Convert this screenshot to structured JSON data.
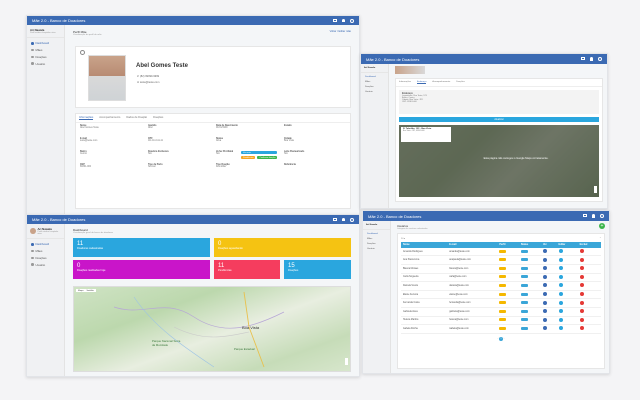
{
  "app": {
    "title": "Mãe 2.0 - Banco de Doadores",
    "user_name": "Ari Nawala",
    "user_sub": "Perfil médico hospitalar ativa",
    "nav": [
      "Dashboard",
      "Mães",
      "Doações",
      "Usuário"
    ]
  },
  "profile": {
    "header": "Perfil Mãe",
    "header_sub": "Visualização do perfil de mãe",
    "back_link": "Voltar / Editar mãe",
    "name": "Abel Gomes Teste",
    "phone": "(82) 99999-9999",
    "email": "teste@teste.com",
    "tabs": [
      "Informações",
      "Acompanhamento",
      "Dados de Doação",
      "Doações"
    ],
    "fields": [
      {
        "label": "Nome",
        "value": "Abel Gomes Teste"
      },
      {
        "label": "Apelido",
        "value": "Abel"
      },
      {
        "label": "Data de Nascimento",
        "value": "01/01/1990"
      },
      {
        "label": "Estado",
        "value": ""
      },
      {
        "label": "E-mail",
        "value": "teste@teste.com"
      },
      {
        "label": "CPF",
        "value": "111.111.111-11"
      },
      {
        "label": "Status",
        "value": "Ativa"
      },
      {
        "label": "Cidade",
        "value": "Boa Vista"
      },
      {
        "label": "Bairro",
        "value": "Centro"
      },
      {
        "label": "Doadora Exclusiva",
        "value": "Sim"
      },
      {
        "label": "Já fez Pré-Natal",
        "value": "Sim"
      },
      {
        "label": "Leite Pasteurizado",
        "value": "Sim"
      },
      {
        "label": "CEP",
        "value": "69301-000"
      },
      {
        "label": "Tipo de Parto",
        "value": "Normal"
      },
      {
        "label": "Tipo Doação",
        "value": "Domiciliar"
      },
      {
        "label": "Referência",
        "value": ""
      }
    ],
    "btn_teal": "Ver mais",
    "btn_orange": "Pendências",
    "btn_green": "Confirmar doação"
  },
  "follow": {
    "title": "Mãe 2.0 - Banco de Doadores",
    "tabs": [
      "Informações",
      "Endereço",
      "Acompanhamento",
      "Doações"
    ],
    "section": "Endereço",
    "lines": [
      "Logradouro: Rua Teste, 123",
      "Bairro: Centro",
      "Cidade: Boa Vista - RR",
      "CEP: 69301-000"
    ],
    "button": "Atualizar",
    "popup_title": "R. Tabelião, 123 - Boa Vista",
    "popup_sub": "Boa Vista - RR, 69301-000",
    "map_msg": "Esta página não carregou o Google Maps corretamente."
  },
  "dashboard": {
    "header": "Dashboard",
    "header_sub": "Visualização geral do banco de doadores",
    "tiles": [
      {
        "number": "11",
        "label": "Doadoras cadastradas",
        "color": "#2aa6de"
      },
      {
        "number": "0",
        "label": "Doações aguardando",
        "color": "#f5c312"
      },
      {
        "number": "0",
        "label": "Doações realizadas hoje",
        "color": "#c915c9"
      },
      {
        "number": "11",
        "label": "Pendências",
        "color": "#f53d5e"
      },
      {
        "number": "15",
        "label": "Doações",
        "color": "#2aa6de"
      }
    ],
    "map_tabs": [
      "Mapa",
      "Satélite"
    ],
    "map_labels": [
      "Boa Vista",
      "Parque Nacional Serra da Mocidade",
      "Parque Estadual"
    ]
  },
  "users": {
    "title": "Mãe 2.0 - Banco de Doadores",
    "header": "Usuários",
    "header_sub": "Listagem de usuários cadastrados",
    "columns": [
      "Nome",
      "E-mail",
      "Perfil",
      "Status",
      "Ver",
      "Editar",
      "Excluir"
    ],
    "rows": [
      {
        "name": "Amanda Rodrigues",
        "email": "amanda@teste.com"
      },
      {
        "name": "Ana Paula Lima",
        "email": "anapaula@teste.com"
      },
      {
        "name": "Bianca Moraes",
        "email": "bianca@teste.com"
      },
      {
        "name": "Carla Nogueira",
        "email": "carla@teste.com"
      },
      {
        "name": "Daniela Souza",
        "email": "daniela@teste.com"
      },
      {
        "name": "Elaine Ferreira",
        "email": "elaine@teste.com"
      },
      {
        "name": "Fernanda Costa",
        "email": "fernanda@teste.com"
      },
      {
        "name": "Gabriela Alves",
        "email": "gabriela@teste.com"
      },
      {
        "name": "Helena Martins",
        "email": "helena@teste.com"
      },
      {
        "name": "Isabela Rocha",
        "email": "isabela@teste.com"
      }
    ],
    "pager": "1",
    "colors": {
      "perfil": "#f5b800",
      "status": "#3aa6d8",
      "view": "#3b6ab3",
      "edit": "#2aa6de",
      "delete": "#e53935",
      "add": "#3bb54a"
    }
  }
}
